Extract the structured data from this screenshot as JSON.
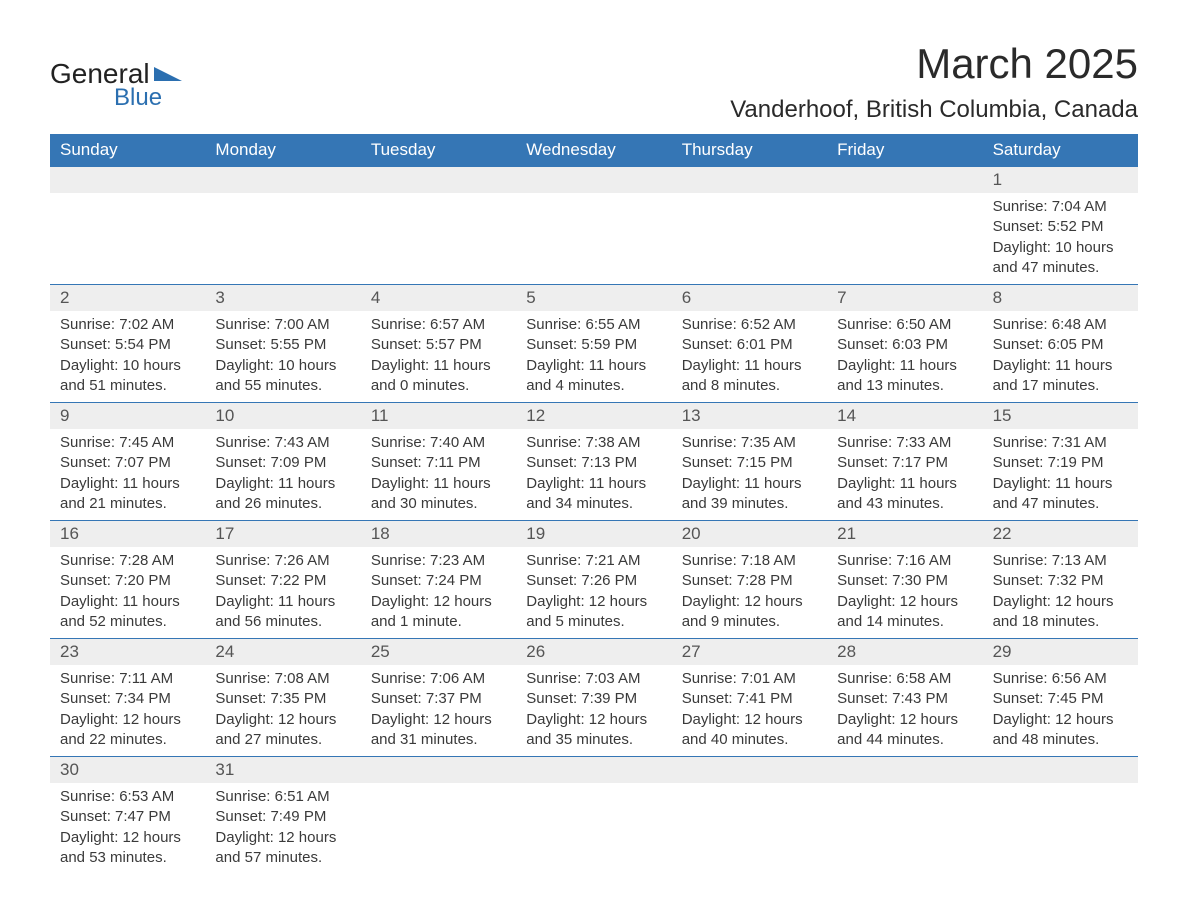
{
  "logo": {
    "general": "General",
    "blue": "Blue",
    "icon_color": "#2b6fb0"
  },
  "header": {
    "month_title": "March 2025",
    "location": "Vanderhoof, British Columbia, Canada"
  },
  "styling": {
    "header_bg": "#3576b5",
    "header_fg": "#ffffff",
    "band_bg": "#eeeeee",
    "border_color": "#3576b5",
    "body_text": "#3a3a3a",
    "title_fontsize_pt": 32,
    "location_fontsize_pt": 18,
    "dow_fontsize_pt": 13,
    "cell_fontsize_pt": 11
  },
  "calendar": {
    "type": "table",
    "days_of_week": [
      "Sunday",
      "Monday",
      "Tuesday",
      "Wednesday",
      "Thursday",
      "Friday",
      "Saturday"
    ],
    "weeks": [
      [
        null,
        null,
        null,
        null,
        null,
        null,
        {
          "d": "1",
          "sr": "Sunrise: 7:04 AM",
          "ss": "Sunset: 5:52 PM",
          "dl1": "Daylight: 10 hours",
          "dl2": "and 47 minutes."
        }
      ],
      [
        {
          "d": "2",
          "sr": "Sunrise: 7:02 AM",
          "ss": "Sunset: 5:54 PM",
          "dl1": "Daylight: 10 hours",
          "dl2": "and 51 minutes."
        },
        {
          "d": "3",
          "sr": "Sunrise: 7:00 AM",
          "ss": "Sunset: 5:55 PM",
          "dl1": "Daylight: 10 hours",
          "dl2": "and 55 minutes."
        },
        {
          "d": "4",
          "sr": "Sunrise: 6:57 AM",
          "ss": "Sunset: 5:57 PM",
          "dl1": "Daylight: 11 hours",
          "dl2": "and 0 minutes."
        },
        {
          "d": "5",
          "sr": "Sunrise: 6:55 AM",
          "ss": "Sunset: 5:59 PM",
          "dl1": "Daylight: 11 hours",
          "dl2": "and 4 minutes."
        },
        {
          "d": "6",
          "sr": "Sunrise: 6:52 AM",
          "ss": "Sunset: 6:01 PM",
          "dl1": "Daylight: 11 hours",
          "dl2": "and 8 minutes."
        },
        {
          "d": "7",
          "sr": "Sunrise: 6:50 AM",
          "ss": "Sunset: 6:03 PM",
          "dl1": "Daylight: 11 hours",
          "dl2": "and 13 minutes."
        },
        {
          "d": "8",
          "sr": "Sunrise: 6:48 AM",
          "ss": "Sunset: 6:05 PM",
          "dl1": "Daylight: 11 hours",
          "dl2": "and 17 minutes."
        }
      ],
      [
        {
          "d": "9",
          "sr": "Sunrise: 7:45 AM",
          "ss": "Sunset: 7:07 PM",
          "dl1": "Daylight: 11 hours",
          "dl2": "and 21 minutes."
        },
        {
          "d": "10",
          "sr": "Sunrise: 7:43 AM",
          "ss": "Sunset: 7:09 PM",
          "dl1": "Daylight: 11 hours",
          "dl2": "and 26 minutes."
        },
        {
          "d": "11",
          "sr": "Sunrise: 7:40 AM",
          "ss": "Sunset: 7:11 PM",
          "dl1": "Daylight: 11 hours",
          "dl2": "and 30 minutes."
        },
        {
          "d": "12",
          "sr": "Sunrise: 7:38 AM",
          "ss": "Sunset: 7:13 PM",
          "dl1": "Daylight: 11 hours",
          "dl2": "and 34 minutes."
        },
        {
          "d": "13",
          "sr": "Sunrise: 7:35 AM",
          "ss": "Sunset: 7:15 PM",
          "dl1": "Daylight: 11 hours",
          "dl2": "and 39 minutes."
        },
        {
          "d": "14",
          "sr": "Sunrise: 7:33 AM",
          "ss": "Sunset: 7:17 PM",
          "dl1": "Daylight: 11 hours",
          "dl2": "and 43 minutes."
        },
        {
          "d": "15",
          "sr": "Sunrise: 7:31 AM",
          "ss": "Sunset: 7:19 PM",
          "dl1": "Daylight: 11 hours",
          "dl2": "and 47 minutes."
        }
      ],
      [
        {
          "d": "16",
          "sr": "Sunrise: 7:28 AM",
          "ss": "Sunset: 7:20 PM",
          "dl1": "Daylight: 11 hours",
          "dl2": "and 52 minutes."
        },
        {
          "d": "17",
          "sr": "Sunrise: 7:26 AM",
          "ss": "Sunset: 7:22 PM",
          "dl1": "Daylight: 11 hours",
          "dl2": "and 56 minutes."
        },
        {
          "d": "18",
          "sr": "Sunrise: 7:23 AM",
          "ss": "Sunset: 7:24 PM",
          "dl1": "Daylight: 12 hours",
          "dl2": "and 1 minute."
        },
        {
          "d": "19",
          "sr": "Sunrise: 7:21 AM",
          "ss": "Sunset: 7:26 PM",
          "dl1": "Daylight: 12 hours",
          "dl2": "and 5 minutes."
        },
        {
          "d": "20",
          "sr": "Sunrise: 7:18 AM",
          "ss": "Sunset: 7:28 PM",
          "dl1": "Daylight: 12 hours",
          "dl2": "and 9 minutes."
        },
        {
          "d": "21",
          "sr": "Sunrise: 7:16 AM",
          "ss": "Sunset: 7:30 PM",
          "dl1": "Daylight: 12 hours",
          "dl2": "and 14 minutes."
        },
        {
          "d": "22",
          "sr": "Sunrise: 7:13 AM",
          "ss": "Sunset: 7:32 PM",
          "dl1": "Daylight: 12 hours",
          "dl2": "and 18 minutes."
        }
      ],
      [
        {
          "d": "23",
          "sr": "Sunrise: 7:11 AM",
          "ss": "Sunset: 7:34 PM",
          "dl1": "Daylight: 12 hours",
          "dl2": "and 22 minutes."
        },
        {
          "d": "24",
          "sr": "Sunrise: 7:08 AM",
          "ss": "Sunset: 7:35 PM",
          "dl1": "Daylight: 12 hours",
          "dl2": "and 27 minutes."
        },
        {
          "d": "25",
          "sr": "Sunrise: 7:06 AM",
          "ss": "Sunset: 7:37 PM",
          "dl1": "Daylight: 12 hours",
          "dl2": "and 31 minutes."
        },
        {
          "d": "26",
          "sr": "Sunrise: 7:03 AM",
          "ss": "Sunset: 7:39 PM",
          "dl1": "Daylight: 12 hours",
          "dl2": "and 35 minutes."
        },
        {
          "d": "27",
          "sr": "Sunrise: 7:01 AM",
          "ss": "Sunset: 7:41 PM",
          "dl1": "Daylight: 12 hours",
          "dl2": "and 40 minutes."
        },
        {
          "d": "28",
          "sr": "Sunrise: 6:58 AM",
          "ss": "Sunset: 7:43 PM",
          "dl1": "Daylight: 12 hours",
          "dl2": "and 44 minutes."
        },
        {
          "d": "29",
          "sr": "Sunrise: 6:56 AM",
          "ss": "Sunset: 7:45 PM",
          "dl1": "Daylight: 12 hours",
          "dl2": "and 48 minutes."
        }
      ],
      [
        {
          "d": "30",
          "sr": "Sunrise: 6:53 AM",
          "ss": "Sunset: 7:47 PM",
          "dl1": "Daylight: 12 hours",
          "dl2": "and 53 minutes."
        },
        {
          "d": "31",
          "sr": "Sunrise: 6:51 AM",
          "ss": "Sunset: 7:49 PM",
          "dl1": "Daylight: 12 hours",
          "dl2": "and 57 minutes."
        },
        null,
        null,
        null,
        null,
        null
      ]
    ]
  }
}
